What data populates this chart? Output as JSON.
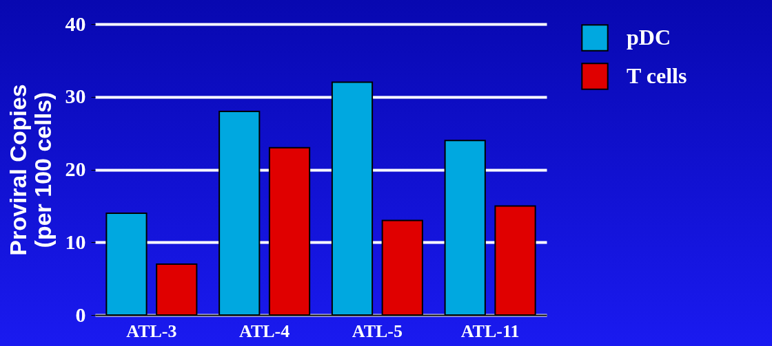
{
  "chart_data": {
    "type": "bar",
    "ylabel": "Proviral Copies\n(per 100 cells)",
    "categories": [
      "ATL-3",
      "ATL-4",
      "ATL-5",
      "ATL-11"
    ],
    "series": [
      {
        "name": "pDC",
        "color": "#00a8e0",
        "values": [
          14,
          28,
          32,
          24
        ]
      },
      {
        "name": "T cells",
        "color": "#e00000",
        "values": [
          7,
          23,
          13,
          15
        ]
      }
    ],
    "ylim": [
      0,
      40
    ],
    "yticks": [
      0,
      10,
      20,
      30,
      40
    ],
    "grid": "y",
    "legend": "right"
  }
}
